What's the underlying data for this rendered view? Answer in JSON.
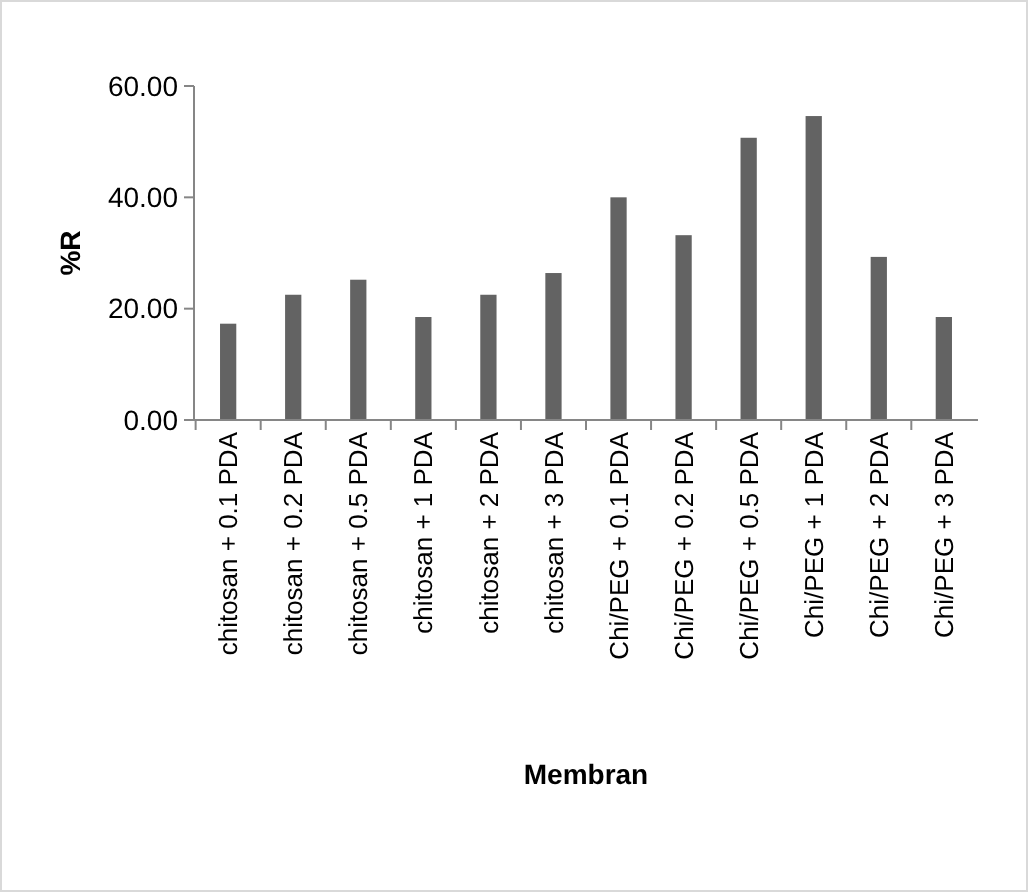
{
  "chart_data": {
    "type": "bar",
    "xlabel": "Membran",
    "ylabel": "%R",
    "categories": [
      "chitosan + 0.1 PDA",
      "chitosan + 0.2 PDA",
      "chitosan + 0.5 PDA",
      "chitosan + 1 PDA",
      "chitosan + 2 PDA",
      "chitosan + 3 PDA",
      "Chi/PEG + 0.1 PDA",
      "Chi/PEG + 0.2 PDA",
      "Chi/PEG + 0.5 PDA",
      "Chi/PEG + 1 PDA",
      "Chi/PEG + 2 PDA",
      "Chi/PEG + 3 PDA"
    ],
    "values": [
      17.3,
      22.5,
      25.2,
      18.5,
      22.5,
      26.4,
      40,
      33.2,
      50.7,
      54.6,
      29.3,
      18.5
    ],
    "color": "#636363",
    "ylim": [
      0,
      60
    ],
    "yticks": [
      {
        "value": 0,
        "label": "0.00"
      },
      {
        "value": 20,
        "label": "20.00"
      },
      {
        "value": 40,
        "label": "40.00"
      },
      {
        "value": 60,
        "label": "60.00"
      }
    ],
    "grid": false
  }
}
